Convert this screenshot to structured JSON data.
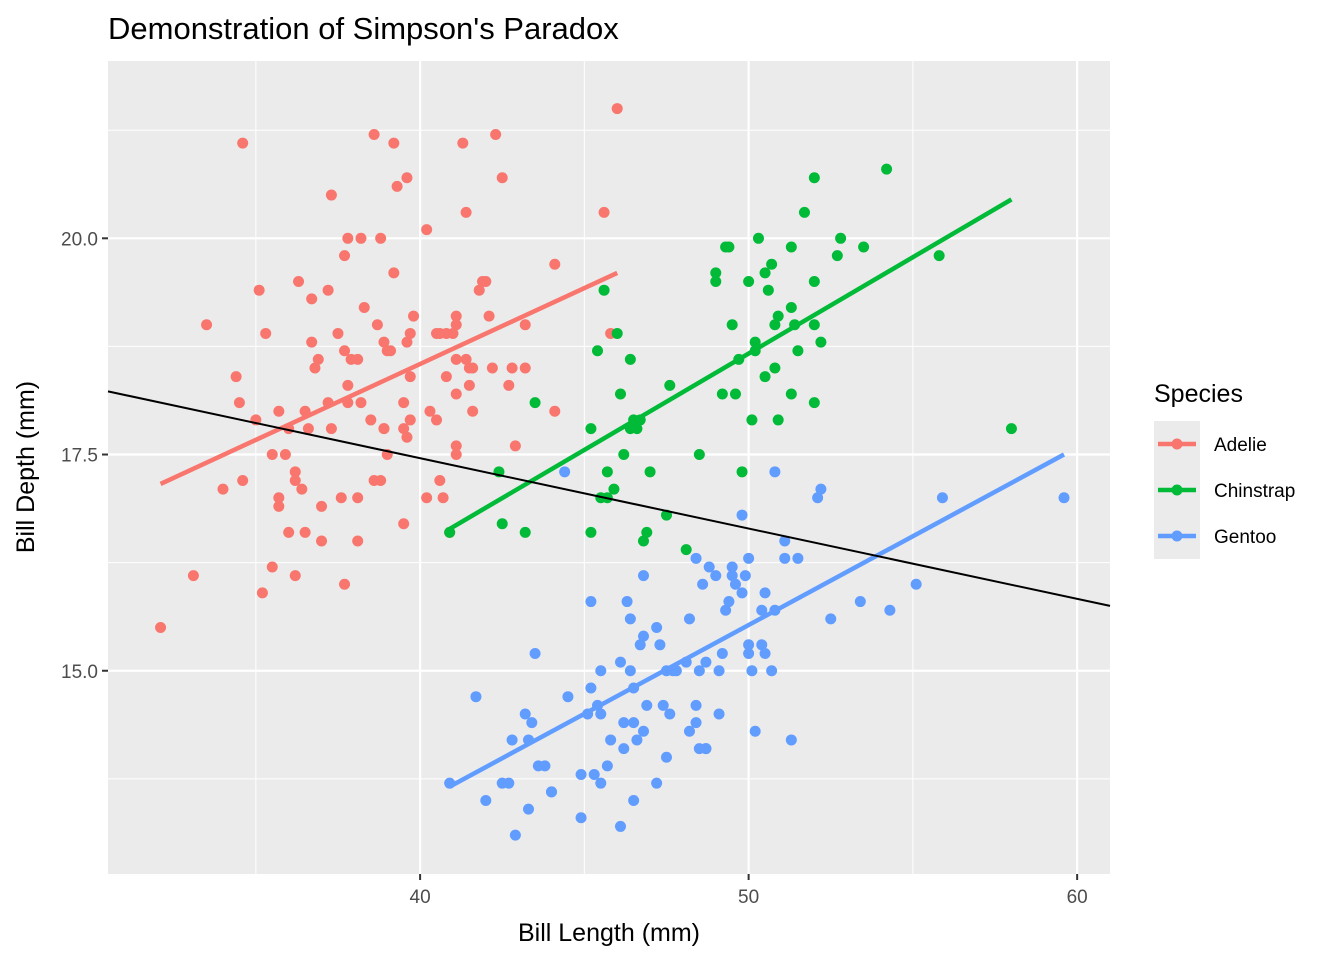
{
  "chart_data": {
    "type": "scatter",
    "title": "Demonstration of Simpson's Paradox",
    "xlabel": "Bill Length (mm)",
    "ylabel": "Bill Depth (mm)",
    "xlim": [
      30.5,
      61.0
    ],
    "ylim": [
      12.65,
      22.05
    ],
    "x_ticks": [
      40,
      50,
      60
    ],
    "y_ticks": [
      15.0,
      17.5,
      20.0
    ],
    "x_tick_labels": [
      "40",
      "50",
      "60"
    ],
    "y_tick_labels": [
      "15.0",
      "17.5",
      "20.0"
    ],
    "grid": true,
    "legend": {
      "title": "Species",
      "position": "right"
    },
    "series": [
      {
        "name": "Adelie",
        "color": "#F8766D",
        "fit": {
          "x": [
            32.1,
            46.0
          ],
          "y": [
            17.16,
            19.6
          ]
        },
        "points": [
          [
            32.1,
            15.5
          ],
          [
            33.1,
            16.1
          ],
          [
            33.5,
            19.0
          ],
          [
            34.0,
            17.1
          ],
          [
            34.5,
            18.1
          ],
          [
            34.4,
            18.4
          ],
          [
            34.6,
            21.1
          ],
          [
            34.6,
            17.2
          ],
          [
            35.0,
            17.9
          ],
          [
            35.1,
            19.4
          ],
          [
            35.2,
            15.9
          ],
          [
            35.3,
            18.9
          ],
          [
            35.5,
            16.2
          ],
          [
            35.5,
            17.5
          ],
          [
            35.7,
            18.0
          ],
          [
            35.7,
            16.9
          ],
          [
            35.7,
            17.0
          ],
          [
            35.9,
            17.5
          ],
          [
            36.0,
            16.6
          ],
          [
            36.0,
            17.8
          ],
          [
            36.2,
            17.3
          ],
          [
            36.2,
            17.2
          ],
          [
            36.2,
            16.1
          ],
          [
            36.3,
            19.5
          ],
          [
            36.4,
            17.1
          ],
          [
            36.5,
            16.6
          ],
          [
            36.5,
            18.0
          ],
          [
            36.6,
            17.8
          ],
          [
            36.7,
            19.3
          ],
          [
            36.7,
            18.8
          ],
          [
            36.8,
            18.5
          ],
          [
            36.9,
            18.6
          ],
          [
            37.0,
            16.9
          ],
          [
            37.0,
            16.5
          ],
          [
            37.2,
            18.1
          ],
          [
            37.2,
            19.4
          ],
          [
            37.3,
            20.5
          ],
          [
            37.3,
            17.8
          ],
          [
            37.5,
            18.9
          ],
          [
            37.6,
            17.0
          ],
          [
            37.7,
            19.8
          ],
          [
            37.7,
            18.7
          ],
          [
            37.7,
            16.0
          ],
          [
            37.8,
            20.0
          ],
          [
            37.8,
            18.3
          ],
          [
            37.8,
            18.1
          ],
          [
            37.9,
            18.6
          ],
          [
            38.1,
            18.6
          ],
          [
            38.1,
            17.0
          ],
          [
            38.1,
            16.5
          ],
          [
            38.2,
            18.1
          ],
          [
            38.2,
            20.0
          ],
          [
            38.3,
            19.2
          ],
          [
            38.5,
            17.9
          ],
          [
            38.6,
            21.2
          ],
          [
            38.6,
            17.2
          ],
          [
            38.7,
            19.0
          ],
          [
            38.8,
            17.2
          ],
          [
            38.8,
            20.0
          ],
          [
            38.9,
            17.8
          ],
          [
            38.9,
            18.8
          ],
          [
            38.9,
            17.8
          ],
          [
            39.0,
            17.5
          ],
          [
            39.0,
            18.7
          ],
          [
            39.1,
            18.7
          ],
          [
            39.2,
            21.1
          ],
          [
            39.2,
            19.6
          ],
          [
            39.3,
            20.6
          ],
          [
            39.5,
            16.7
          ],
          [
            39.5,
            17.8
          ],
          [
            39.5,
            18.1
          ],
          [
            39.6,
            20.7
          ],
          [
            39.6,
            17.7
          ],
          [
            39.6,
            18.8
          ],
          [
            39.7,
            18.4
          ],
          [
            39.7,
            17.9
          ],
          [
            39.7,
            18.9
          ],
          [
            39.8,
            19.1
          ],
          [
            40.2,
            20.1
          ],
          [
            40.2,
            17.0
          ],
          [
            40.3,
            18.0
          ],
          [
            40.5,
            17.9
          ],
          [
            40.5,
            18.9
          ],
          [
            40.6,
            18.9
          ],
          [
            40.6,
            17.2
          ],
          [
            40.7,
            17.0
          ],
          [
            40.8,
            18.4
          ],
          [
            40.8,
            18.9
          ],
          [
            40.9,
            16.6
          ],
          [
            41.0,
            18.9
          ],
          [
            41.1,
            17.6
          ],
          [
            41.1,
            19.0
          ],
          [
            41.1,
            18.2
          ],
          [
            41.1,
            19.1
          ],
          [
            41.1,
            18.6
          ],
          [
            41.1,
            17.5
          ],
          [
            41.3,
            21.1
          ],
          [
            41.4,
            18.6
          ],
          [
            41.4,
            20.3
          ],
          [
            41.5,
            18.5
          ],
          [
            41.5,
            18.3
          ],
          [
            41.6,
            18.0
          ],
          [
            41.6,
            18.5
          ],
          [
            42.0,
            19.5
          ],
          [
            42.2,
            18.5
          ],
          [
            42.3,
            21.2
          ],
          [
            42.5,
            20.7
          ],
          [
            42.7,
            18.3
          ],
          [
            42.8,
            18.5
          ],
          [
            42.9,
            17.6
          ],
          [
            43.2,
            19.0
          ],
          [
            43.2,
            18.5
          ],
          [
            44.1,
            19.7
          ],
          [
            44.1,
            18.0
          ],
          [
            45.6,
            20.3
          ],
          [
            45.8,
            18.9
          ],
          [
            46.0,
            21.5
          ],
          [
            41.8,
            19.4
          ],
          [
            41.9,
            19.5
          ],
          [
            42.1,
            19.1
          ]
        ]
      },
      {
        "name": "Chinstrap",
        "color": "#00BA38",
        "fit": {
          "x": [
            40.9,
            58.0
          ],
          "y": [
            16.64,
            20.45
          ]
        },
        "points": [
          [
            40.9,
            16.6
          ],
          [
            42.4,
            17.3
          ],
          [
            42.5,
            16.7
          ],
          [
            43.2,
            16.6
          ],
          [
            43.5,
            18.1
          ],
          [
            45.2,
            17.8
          ],
          [
            45.2,
            16.6
          ],
          [
            45.4,
            18.7
          ],
          [
            45.5,
            17.0
          ],
          [
            45.6,
            19.4
          ],
          [
            45.7,
            17.3
          ],
          [
            45.7,
            17.0
          ],
          [
            45.9,
            17.1
          ],
          [
            46.0,
            18.9
          ],
          [
            46.1,
            18.2
          ],
          [
            46.2,
            17.5
          ],
          [
            46.4,
            18.6
          ],
          [
            46.4,
            17.8
          ],
          [
            46.5,
            17.9
          ],
          [
            46.6,
            17.8
          ],
          [
            46.7,
            17.9
          ],
          [
            46.8,
            16.5
          ],
          [
            46.9,
            16.6
          ],
          [
            47.0,
            17.3
          ],
          [
            47.5,
            16.8
          ],
          [
            47.6,
            18.3
          ],
          [
            48.1,
            16.4
          ],
          [
            48.5,
            17.5
          ],
          [
            49.0,
            19.5
          ],
          [
            49.0,
            19.6
          ],
          [
            49.2,
            18.2
          ],
          [
            49.3,
            19.9
          ],
          [
            49.5,
            19.0
          ],
          [
            49.6,
            18.2
          ],
          [
            49.7,
            18.6
          ],
          [
            49.8,
            17.3
          ],
          [
            50.0,
            19.5
          ],
          [
            50.1,
            17.9
          ],
          [
            50.2,
            18.8
          ],
          [
            50.2,
            18.7
          ],
          [
            50.3,
            20.0
          ],
          [
            50.5,
            18.4
          ],
          [
            50.5,
            19.6
          ],
          [
            50.6,
            19.4
          ],
          [
            50.7,
            19.7
          ],
          [
            50.8,
            18.5
          ],
          [
            50.8,
            19.0
          ],
          [
            50.9,
            17.9
          ],
          [
            50.9,
            19.1
          ],
          [
            51.3,
            18.2
          ],
          [
            51.3,
            19.2
          ],
          [
            51.3,
            19.9
          ],
          [
            51.4,
            19.0
          ],
          [
            51.5,
            18.7
          ],
          [
            51.7,
            20.3
          ],
          [
            52.0,
            18.1
          ],
          [
            52.0,
            19.5
          ],
          [
            52.0,
            19.0
          ],
          [
            52.2,
            18.8
          ],
          [
            52.7,
            19.8
          ],
          [
            52.8,
            20.0
          ],
          [
            53.5,
            19.9
          ],
          [
            54.2,
            20.8
          ],
          [
            55.8,
            19.8
          ],
          [
            58.0,
            17.8
          ],
          [
            52.0,
            20.7
          ],
          [
            49.4,
            19.9
          ]
        ]
      },
      {
        "name": "Gentoo",
        "color": "#619CFF",
        "fit": {
          "x": [
            40.9,
            59.6
          ],
          "y": [
            13.66,
            17.5
          ]
        },
        "points": [
          [
            40.9,
            13.7
          ],
          [
            41.7,
            14.7
          ],
          [
            42.0,
            13.5
          ],
          [
            42.5,
            13.7
          ],
          [
            42.7,
            13.7
          ],
          [
            42.8,
            14.2
          ],
          [
            42.9,
            13.1
          ],
          [
            43.2,
            14.5
          ],
          [
            43.3,
            14.2
          ],
          [
            43.3,
            13.4
          ],
          [
            43.4,
            14.4
          ],
          [
            43.5,
            15.2
          ],
          [
            43.6,
            13.9
          ],
          [
            43.8,
            13.9
          ],
          [
            44.0,
            13.6
          ],
          [
            44.4,
            17.3
          ],
          [
            44.5,
            14.7
          ],
          [
            44.9,
            13.3
          ],
          [
            44.9,
            13.8
          ],
          [
            45.1,
            14.5
          ],
          [
            45.2,
            14.8
          ],
          [
            45.2,
            15.8
          ],
          [
            45.3,
            13.8
          ],
          [
            45.4,
            14.6
          ],
          [
            45.5,
            13.7
          ],
          [
            45.5,
            14.5
          ],
          [
            45.5,
            15.0
          ],
          [
            45.7,
            13.9
          ],
          [
            45.8,
            14.2
          ],
          [
            46.1,
            15.1
          ],
          [
            46.1,
            13.2
          ],
          [
            46.2,
            14.4
          ],
          [
            46.2,
            14.1
          ],
          [
            46.3,
            15.8
          ],
          [
            46.4,
            15.6
          ],
          [
            46.4,
            15.0
          ],
          [
            46.5,
            13.5
          ],
          [
            46.5,
            14.4
          ],
          [
            46.5,
            14.8
          ],
          [
            46.6,
            14.2
          ],
          [
            46.7,
            15.3
          ],
          [
            46.8,
            15.4
          ],
          [
            46.8,
            14.3
          ],
          [
            46.8,
            16.1
          ],
          [
            46.9,
            14.6
          ],
          [
            47.2,
            15.5
          ],
          [
            47.2,
            13.7
          ],
          [
            47.3,
            15.3
          ],
          [
            47.4,
            14.6
          ],
          [
            47.5,
            14.0
          ],
          [
            47.5,
            15.0
          ],
          [
            47.6,
            14.5
          ],
          [
            47.7,
            15.0
          ],
          [
            47.8,
            15.0
          ],
          [
            48.1,
            15.1
          ],
          [
            48.2,
            14.3
          ],
          [
            48.2,
            15.6
          ],
          [
            48.4,
            14.4
          ],
          [
            48.4,
            16.3
          ],
          [
            48.4,
            14.6
          ],
          [
            48.5,
            15.0
          ],
          [
            48.6,
            16.0
          ],
          [
            48.7,
            14.1
          ],
          [
            48.7,
            15.1
          ],
          [
            48.8,
            16.2
          ],
          [
            49.0,
            16.1
          ],
          [
            49.1,
            14.5
          ],
          [
            49.1,
            15.0
          ],
          [
            49.2,
            15.2
          ],
          [
            49.3,
            15.7
          ],
          [
            49.4,
            15.8
          ],
          [
            49.5,
            16.1
          ],
          [
            49.5,
            16.2
          ],
          [
            49.6,
            16.0
          ],
          [
            49.8,
            16.8
          ],
          [
            49.8,
            15.9
          ],
          [
            49.9,
            16.1
          ],
          [
            50.0,
            16.3
          ],
          [
            50.0,
            15.3
          ],
          [
            50.0,
            15.2
          ],
          [
            50.1,
            15.0
          ],
          [
            50.2,
            14.3
          ],
          [
            50.4,
            15.7
          ],
          [
            50.4,
            15.3
          ],
          [
            50.5,
            15.2
          ],
          [
            50.5,
            15.9
          ],
          [
            50.7,
            15.0
          ],
          [
            50.8,
            17.3
          ],
          [
            50.8,
            15.7
          ],
          [
            51.1,
            16.5
          ],
          [
            51.1,
            16.3
          ],
          [
            51.3,
            14.2
          ],
          [
            51.5,
            16.3
          ],
          [
            52.1,
            17.0
          ],
          [
            52.2,
            17.1
          ],
          [
            52.5,
            15.6
          ],
          [
            53.4,
            15.8
          ],
          [
            54.3,
            15.7
          ],
          [
            55.1,
            16.0
          ],
          [
            55.9,
            17.0
          ],
          [
            59.6,
            17.0
          ],
          [
            48.5,
            14.1
          ],
          [
            48.7,
            14.1
          ],
          [
            44.0,
            13.6
          ]
        ]
      }
    ],
    "overall_fit": {
      "x": [
        30.5,
        61.0
      ],
      "y": [
        18.23,
        15.75
      ]
    }
  }
}
